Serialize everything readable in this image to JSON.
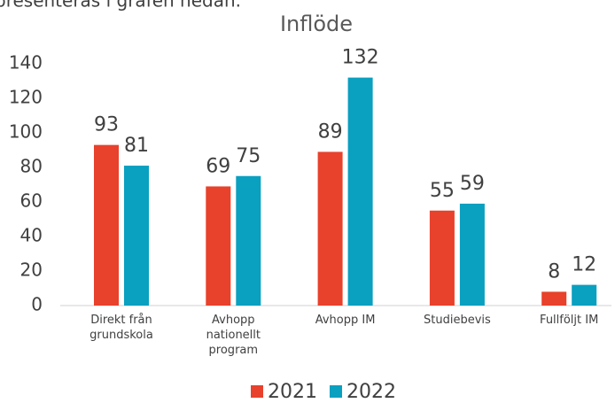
{
  "intro_text": "presenteras i grafen nedan.",
  "chart_data": {
    "type": "bar",
    "title": "Inflöde",
    "categories": [
      "Direkt från grundskola",
      "Avhopp nationellt program",
      "Avhopp IM",
      "Studiebevis",
      "Fullföljt IM"
    ],
    "series": [
      {
        "name": "2021",
        "color": "#e8412c",
        "values": [
          93,
          69,
          89,
          55,
          8
        ]
      },
      {
        "name": "2022",
        "color": "#0aa0c0",
        "values": [
          81,
          75,
          132,
          59,
          12
        ]
      }
    ],
    "ylim": [
      0,
      140
    ],
    "yticks": [
      0,
      20,
      40,
      60,
      80,
      100,
      120,
      140
    ],
    "grid": false,
    "legend": "bottom"
  }
}
